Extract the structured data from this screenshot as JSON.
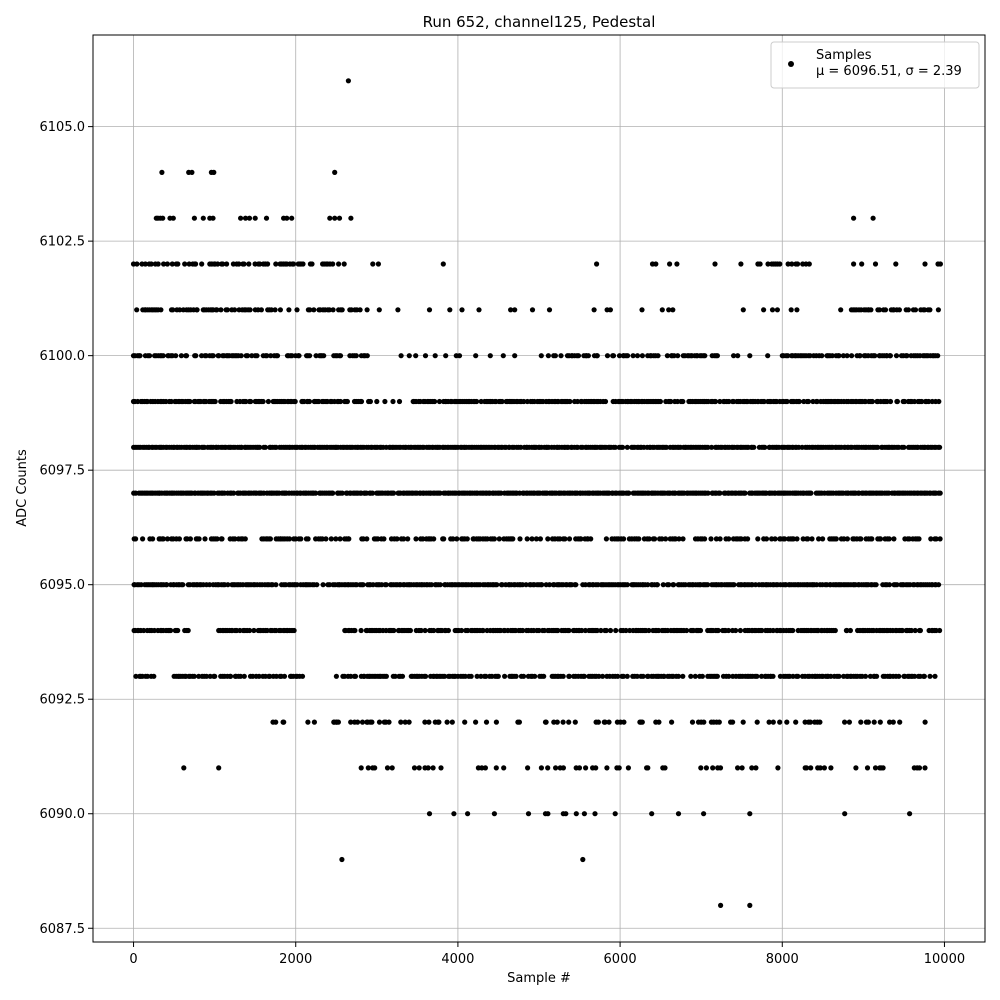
{
  "chart_data": {
    "type": "scatter",
    "title": "Run 652, channel125, Pedestal",
    "xlabel": "Sample #",
    "ylabel": "ADC Counts",
    "xlim": [
      -500,
      10500
    ],
    "ylim": [
      6087.2,
      6107.0
    ],
    "xticks": [
      0,
      2000,
      4000,
      6000,
      8000,
      10000
    ],
    "xtick_labels": [
      "0",
      "2000",
      "4000",
      "6000",
      "8000",
      "10000"
    ],
    "yticks": [
      6087.5,
      6090.0,
      6092.5,
      6095.0,
      6097.5,
      6100.0,
      6102.5,
      6105.0
    ],
    "ytick_labels": [
      "6087.5",
      "6090.0",
      "6092.5",
      "6095.0",
      "6097.5",
      "6100.0",
      "6102.5",
      "6105.0"
    ],
    "grid": true,
    "legend": {
      "placement": "top-right",
      "label": "Samples",
      "stats": "μ = 6096.51, σ = 2.39"
    },
    "marker_color": "#000000",
    "series": [
      {
        "x_range": [
          0,
          9950
        ],
        "levels": [
          {
            "y": 6097,
            "density": 0.95,
            "segments": [
              [
                0,
                9950
              ]
            ]
          },
          {
            "y": 6098,
            "density": 0.92,
            "segments": [
              [
                0,
                9950
              ]
            ]
          },
          {
            "y": 6095,
            "density": 0.85,
            "segments": [
              [
                0,
                9950
              ]
            ]
          },
          {
            "y": 6099,
            "density": 0.8,
            "segments": [
              [
                0,
                2950
              ],
              [
                3400,
                9950
              ]
            ]
          },
          {
            "y": 6094,
            "density": 0.75,
            "segments": [
              [
                0,
                700
              ],
              [
                1050,
                2000
              ],
              [
                2600,
                9950
              ]
            ]
          },
          {
            "y": 6096,
            "density": 0.55,
            "segments": [
              [
                0,
                9950
              ]
            ]
          },
          {
            "y": 6093,
            "density": 0.65,
            "segments": [
              [
                0,
                250
              ],
              [
                500,
                2100
              ],
              [
                2500,
                9950
              ]
            ]
          },
          {
            "y": 6100,
            "density": 0.65,
            "segments": [
              [
                0,
                2900
              ],
              [
                5000,
                7200
              ],
              [
                8000,
                9950
              ]
            ]
          },
          {
            "y": 6101,
            "density": 0.55,
            "segments": [
              [
                0,
                2800
              ],
              [
                8700,
                9950
              ]
            ]
          },
          {
            "y": 6102,
            "density": 0.5,
            "segments": [
              [
                0,
                2700
              ],
              [
                7700,
                8350
              ]
            ]
          },
          {
            "y": 6092,
            "density": 0.25,
            "segments": [
              [
                1750,
                9800
              ]
            ]
          },
          {
            "y": 6091,
            "density": 0.22,
            "segments": [
              [
                2800,
                9800
              ]
            ]
          }
        ],
        "points": [
          [
            2650,
            6106
          ],
          [
            350,
            6104
          ],
          [
            680,
            6104
          ],
          [
            720,
            6104
          ],
          [
            960,
            6104
          ],
          [
            990,
            6104
          ],
          [
            2480,
            6104
          ],
          [
            280,
            6103
          ],
          [
            300,
            6103
          ],
          [
            330,
            6103
          ],
          [
            360,
            6103
          ],
          [
            450,
            6103
          ],
          [
            490,
            6103
          ],
          [
            750,
            6103
          ],
          [
            860,
            6103
          ],
          [
            940,
            6103
          ],
          [
            980,
            6103
          ],
          [
            1320,
            6103
          ],
          [
            1380,
            6103
          ],
          [
            1430,
            6103
          ],
          [
            1500,
            6103
          ],
          [
            1640,
            6103
          ],
          [
            1850,
            6103
          ],
          [
            1890,
            6103
          ],
          [
            1950,
            6103
          ],
          [
            2420,
            6103
          ],
          [
            2480,
            6103
          ],
          [
            2540,
            6103
          ],
          [
            2680,
            6103
          ],
          [
            8880,
            6103
          ],
          [
            9120,
            6103
          ],
          [
            2950,
            6102
          ],
          [
            3020,
            6102
          ],
          [
            3820,
            6102
          ],
          [
            5710,
            6102
          ],
          [
            6400,
            6102
          ],
          [
            6440,
            6102
          ],
          [
            6610,
            6102
          ],
          [
            6700,
            6102
          ],
          [
            7170,
            6102
          ],
          [
            7490,
            6102
          ],
          [
            8880,
            6102
          ],
          [
            8980,
            6102
          ],
          [
            9150,
            6102
          ],
          [
            9400,
            6102
          ],
          [
            9760,
            6102
          ],
          [
            9920,
            6102
          ],
          [
            9950,
            6102
          ],
          [
            2880,
            6101
          ],
          [
            3030,
            6101
          ],
          [
            3260,
            6101
          ],
          [
            3650,
            6101
          ],
          [
            3900,
            6101
          ],
          [
            4050,
            6101
          ],
          [
            4260,
            6101
          ],
          [
            4650,
            6101
          ],
          [
            4700,
            6101
          ],
          [
            4920,
            6101
          ],
          [
            5130,
            6101
          ],
          [
            5680,
            6101
          ],
          [
            5840,
            6101
          ],
          [
            5880,
            6101
          ],
          [
            6270,
            6101
          ],
          [
            6520,
            6101
          ],
          [
            6600,
            6101
          ],
          [
            6650,
            6101
          ],
          [
            7520,
            6101
          ],
          [
            7770,
            6101
          ],
          [
            7880,
            6101
          ],
          [
            7940,
            6101
          ],
          [
            8110,
            6101
          ],
          [
            8180,
            6101
          ],
          [
            3300,
            6100
          ],
          [
            3400,
            6100
          ],
          [
            3480,
            6100
          ],
          [
            3600,
            6100
          ],
          [
            3720,
            6100
          ],
          [
            3850,
            6100
          ],
          [
            3980,
            6100
          ],
          [
            4020,
            6100
          ],
          [
            4220,
            6100
          ],
          [
            4400,
            6100
          ],
          [
            4560,
            6100
          ],
          [
            4700,
            6100
          ],
          [
            7400,
            6100
          ],
          [
            7450,
            6100
          ],
          [
            7600,
            6100
          ],
          [
            7820,
            6100
          ],
          [
            3000,
            6099
          ],
          [
            3100,
            6099
          ],
          [
            3200,
            6099
          ],
          [
            3280,
            6099
          ],
          [
            1720,
            6092
          ],
          [
            2150,
            6092
          ],
          [
            2470,
            6092
          ],
          [
            2500,
            6092
          ],
          [
            620,
            6091
          ],
          [
            1050,
            6091
          ],
          [
            3650,
            6090
          ],
          [
            3950,
            6090
          ],
          [
            4120,
            6090
          ],
          [
            4450,
            6090
          ],
          [
            4870,
            6090
          ],
          [
            5080,
            6090
          ],
          [
            5110,
            6090
          ],
          [
            5300,
            6090
          ],
          [
            5330,
            6090
          ],
          [
            5460,
            6090
          ],
          [
            5560,
            6090
          ],
          [
            5690,
            6090
          ],
          [
            5940,
            6090
          ],
          [
            6390,
            6090
          ],
          [
            6720,
            6090
          ],
          [
            7030,
            6090
          ],
          [
            7600,
            6090
          ],
          [
            8770,
            6090
          ],
          [
            9570,
            6090
          ],
          [
            2570,
            6089
          ],
          [
            5540,
            6089
          ],
          [
            7240,
            6088
          ],
          [
            7600,
            6088
          ]
        ]
      }
    ]
  }
}
